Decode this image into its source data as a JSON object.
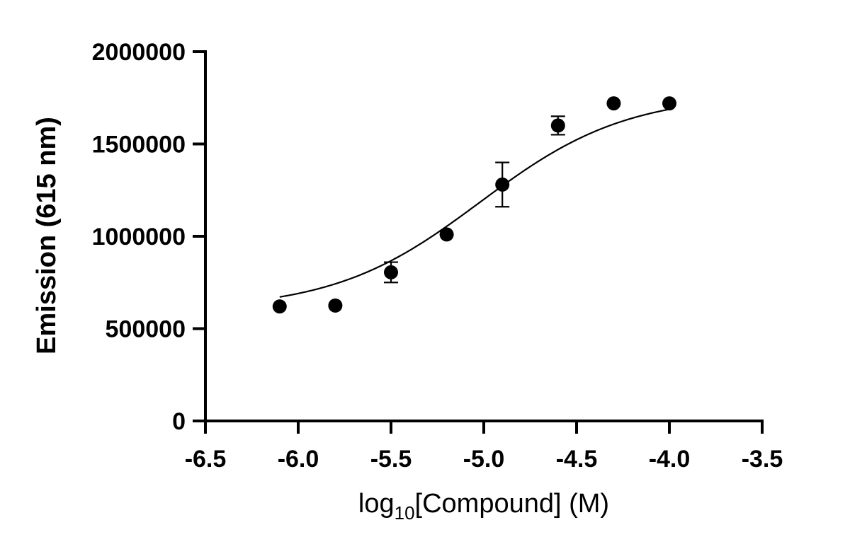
{
  "chart_data": {
    "type": "scatter",
    "title": "",
    "xlabel_parts": {
      "pre": "log",
      "sub": "10",
      "post": "[Compound] (M)"
    },
    "ylabel": "Emission (615 nm)",
    "xlim": [
      -6.5,
      -3.5
    ],
    "ylim": [
      0,
      2000000
    ],
    "xticks": [
      -6.5,
      -6.0,
      -5.5,
      -5.0,
      -4.5,
      -4.0,
      -3.5
    ],
    "xtick_labels": [
      "-6.5",
      "-6.0",
      "-5.5",
      "-5.0",
      "-4.5",
      "-4.0",
      "-3.5"
    ],
    "yticks": [
      0,
      500000,
      1000000,
      1500000,
      2000000
    ],
    "ytick_labels": [
      "0",
      "500000",
      "1000000",
      "1500000",
      "2000000"
    ],
    "grid": false,
    "points": [
      {
        "x": -6.1,
        "y": 620000,
        "err": 0
      },
      {
        "x": -5.8,
        "y": 625000,
        "err": 0
      },
      {
        "x": -5.5,
        "y": 805000,
        "err": 55000
      },
      {
        "x": -5.2,
        "y": 1010000,
        "err": 0
      },
      {
        "x": -4.9,
        "y": 1280000,
        "err": 120000
      },
      {
        "x": -4.6,
        "y": 1600000,
        "err": 50000
      },
      {
        "x": -4.3,
        "y": 1720000,
        "err": 0
      },
      {
        "x": -4.0,
        "y": 1720000,
        "err": 0
      }
    ],
    "fit": {
      "model": "four-parameter logistic",
      "bottom": 600000,
      "top": 1770000,
      "logEC50": -5.02,
      "hill": 1.1,
      "x_range": [
        -6.1,
        -4.0
      ]
    },
    "colors": {
      "marker": "#000000",
      "line": "#000000",
      "axis": "#000000"
    }
  }
}
